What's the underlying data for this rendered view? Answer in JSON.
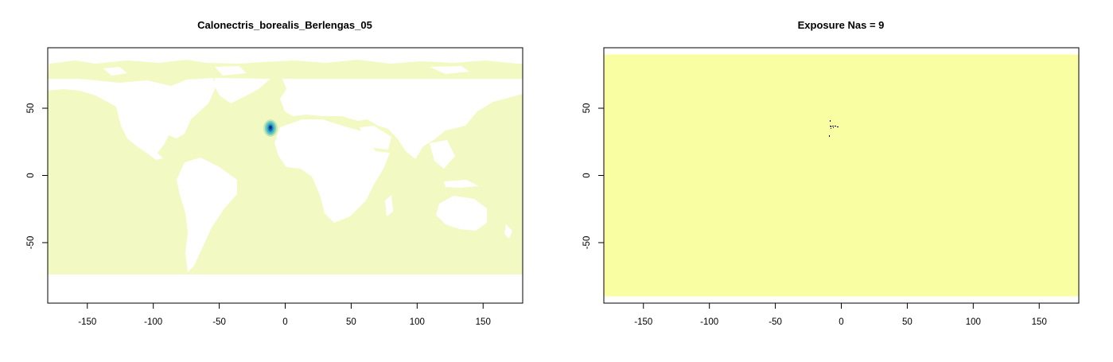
{
  "chart_data": [
    {
      "type": "heatmap",
      "title": "Calonectris_borealis_Berlengas_05",
      "xlim": [
        -180,
        180
      ],
      "ylim": [
        -95,
        95
      ],
      "xticks": [
        -150,
        -100,
        -50,
        0,
        50,
        100,
        150
      ],
      "yticks": [
        50,
        0,
        -50
      ],
      "ocean_color": "#f3f9c2",
      "land_color": "#ffffff",
      "hotspot": {
        "center": [
          -10,
          36
        ],
        "colors": [
          "#c7e9b4",
          "#7fcdbb",
          "#41b6c4",
          "#1d91c0",
          "#225ea8",
          "#0c2c84"
        ]
      }
    },
    {
      "type": "heatmap",
      "title": "Exposure Nas = 9",
      "xlim": [
        -180,
        180
      ],
      "ylim": [
        -95,
        95
      ],
      "xticks": [
        -150,
        -100,
        -50,
        0,
        50,
        100,
        150
      ],
      "yticks": [
        50,
        0,
        -50
      ],
      "fill_color": "#fafea3",
      "fill_extent": {
        "x": [
          -180,
          180
        ],
        "y": [
          -90,
          90
        ]
      },
      "na_color": "#000000",
      "na_count": 9
    }
  ]
}
